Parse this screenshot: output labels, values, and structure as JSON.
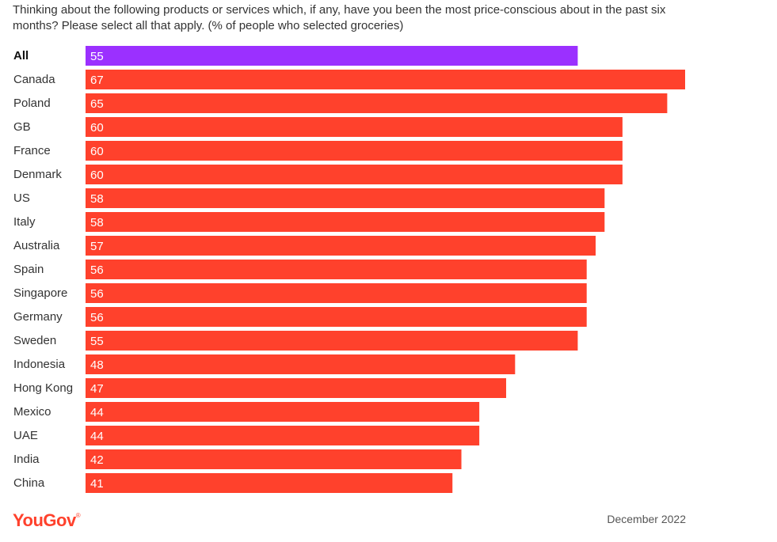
{
  "chart_data": {
    "type": "bar",
    "orientation": "horizontal",
    "title": "Thinking about the following products or services which, if any, have you been the most price-conscious about in the past six months? Please select all that apply. (% of people who selected groceries)",
    "categories": [
      "All",
      "Canada",
      "Poland",
      "GB",
      "France",
      "Denmark",
      "US",
      "Italy",
      "Australia",
      "Spain",
      "Singapore",
      "Germany",
      "Sweden",
      "Indonesia",
      "Hong Kong",
      "Mexico",
      "UAE",
      "India",
      "China"
    ],
    "values": [
      55,
      67,
      65,
      60,
      60,
      60,
      58,
      58,
      57,
      56,
      56,
      56,
      55,
      48,
      47,
      44,
      44,
      42,
      41
    ],
    "highlight_category": "All",
    "xlim": [
      0,
      67
    ],
    "grid": false,
    "legend": "none",
    "data_labels": "inside-left",
    "colors": {
      "highlight": "#9B30FF",
      "bar": "#FF412C"
    }
  },
  "footer": {
    "logo_text": "YouGov",
    "logo_mark": "®",
    "logo_color": "#FF412C",
    "date": "December 2022"
  }
}
